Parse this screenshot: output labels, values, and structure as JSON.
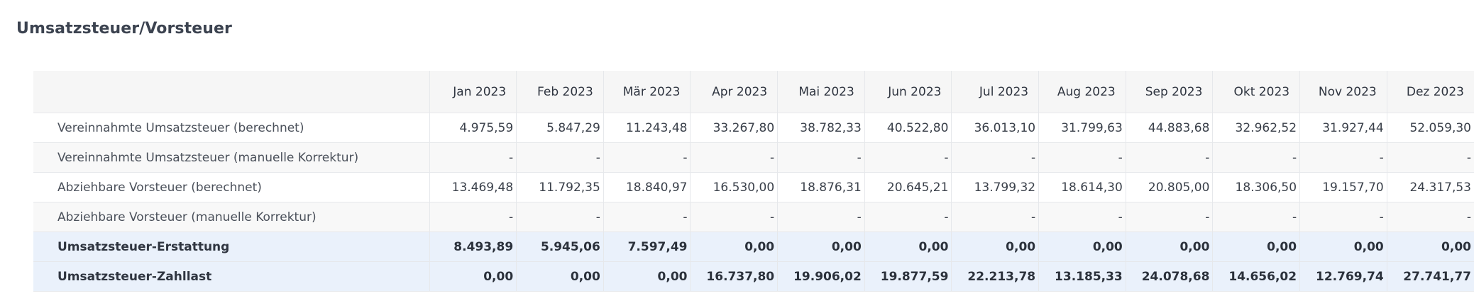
{
  "page": {
    "title": "Umsatzsteuer/Vorsteuer"
  },
  "table": {
    "corner": "",
    "months": [
      "Jan 2023",
      "Feb 2023",
      "Mär 2023",
      "Apr 2023",
      "Mai 2023",
      "Jun 2023",
      "Jul 2023",
      "Aug 2023",
      "Sep 2023",
      "Okt 2023",
      "Nov 2023",
      "Dez 2023"
    ],
    "rows": [
      {
        "label": "Vereinnahmte Umsatzsteuer (berechnet)",
        "values": [
          "4.975,59",
          "5.847,29",
          "11.243,48",
          "33.267,80",
          "38.782,33",
          "40.522,80",
          "36.013,10",
          "31.799,63",
          "44.883,68",
          "32.962,52",
          "31.927,44",
          "52.059,30"
        ]
      },
      {
        "label": "Vereinnahmte Umsatzsteuer (manuelle Korrektur)",
        "values": [
          "-",
          "-",
          "-",
          "-",
          "-",
          "-",
          "-",
          "-",
          "-",
          "-",
          "-",
          "-"
        ]
      },
      {
        "label": "Abziehbare Vorsteuer (berechnet)",
        "values": [
          "13.469,48",
          "11.792,35",
          "18.840,97",
          "16.530,00",
          "18.876,31",
          "20.645,21",
          "13.799,32",
          "18.614,30",
          "20.805,00",
          "18.306,50",
          "19.157,70",
          "24.317,53"
        ]
      },
      {
        "label": "Abziehbare Vorsteuer (manuelle Korrektur)",
        "values": [
          "-",
          "-",
          "-",
          "-",
          "-",
          "-",
          "-",
          "-",
          "-",
          "-",
          "-",
          "-"
        ]
      },
      {
        "label": "Umsatzsteuer-Erstattung",
        "values": [
          "8.493,89",
          "5.945,06",
          "7.597,49",
          "0,00",
          "0,00",
          "0,00",
          "0,00",
          "0,00",
          "0,00",
          "0,00",
          "0,00",
          "0,00"
        ]
      },
      {
        "label": "Umsatzsteuer-Zahllast",
        "values": [
          "0,00",
          "0,00",
          "0,00",
          "16.737,80",
          "19.906,02",
          "19.877,59",
          "22.213,78",
          "13.185,33",
          "24.078,68",
          "14.656,02",
          "12.769,74",
          "27.741,77"
        ]
      }
    ]
  }
}
